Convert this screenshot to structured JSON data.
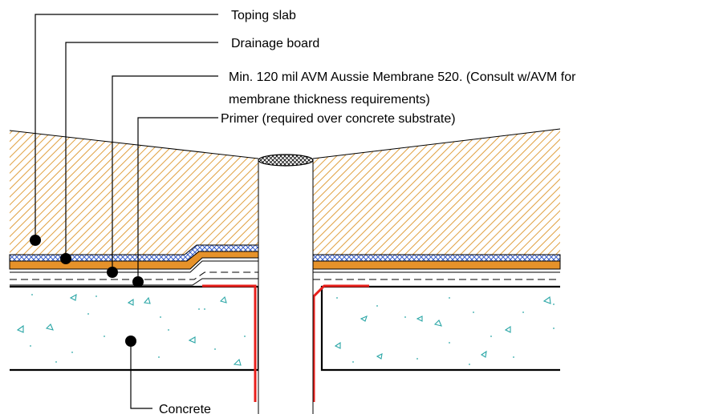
{
  "labels": {
    "topping_slab": "Toping slab",
    "drainage_board": "Drainage board",
    "membrane_line1": "Min. 120 mil AVM Aussie Membrane 520. (Consult w/AVM for",
    "membrane_line2": "membrane thickness requirements)",
    "primer": "Primer (required over concrete substrate)",
    "concrete": "Concrete"
  },
  "colors": {
    "topping_hatch": "#e0a040",
    "drainage_board": "#3a5fc8",
    "membrane": "#e6922a",
    "flashing": "#e8201c",
    "concrete_marks": "#2aa6a6",
    "line": "#000000"
  }
}
